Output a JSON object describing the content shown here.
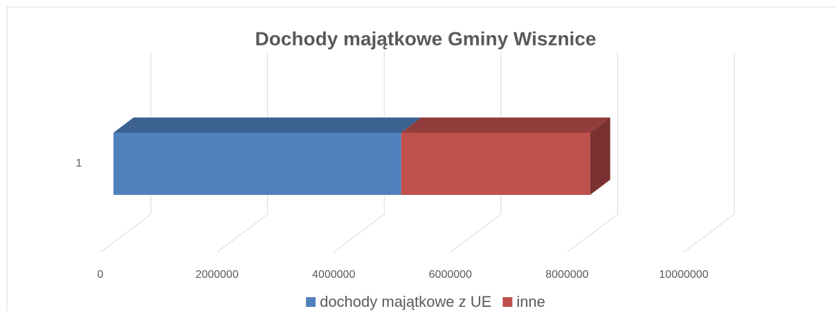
{
  "chart_data": {
    "type": "bar3d_stacked_horizontal",
    "title": "Dochody majątkowe Gminy Wisznice",
    "categories": [
      "1"
    ],
    "series": [
      {
        "name": "dochody majątkowe z UE",
        "color": "#4f81bd",
        "values": [
          4930000
        ]
      },
      {
        "name": "inne",
        "color": "#c0504d",
        "values": [
          3240000
        ]
      }
    ],
    "xlim": [
      0,
      10000000
    ],
    "xticks": [
      0,
      2000000,
      4000000,
      6000000,
      8000000,
      10000000
    ],
    "grid": true,
    "legend": "bottom"
  }
}
